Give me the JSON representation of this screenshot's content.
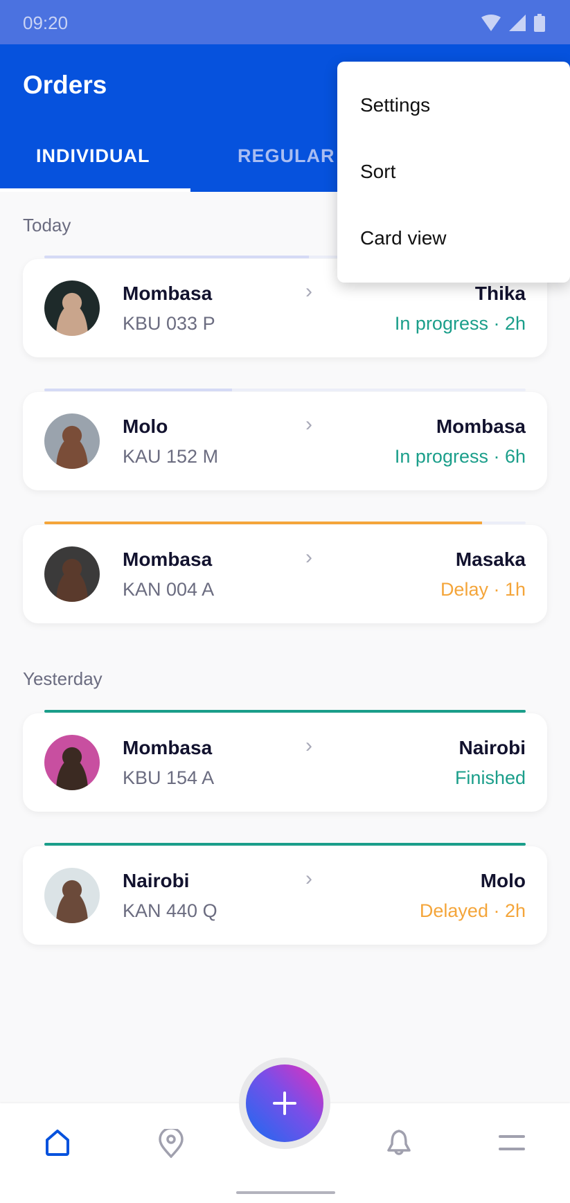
{
  "status_bar": {
    "time": "09:20"
  },
  "header": {
    "title": "Orders",
    "tabs": [
      {
        "label": "INDIVIDUAL",
        "active": true
      },
      {
        "label": "REGULAR",
        "active": false
      }
    ]
  },
  "menu": {
    "items": [
      "Settings",
      "Sort",
      "Card view"
    ]
  },
  "sections": [
    {
      "label": "Today",
      "orders": [
        {
          "from": "Mombasa",
          "plate": "KBU 033 P",
          "to": "Thika",
          "status": "In progress · 2h",
          "status_color": "#1a9e8a",
          "progress": 0.55,
          "bar_color": "#d5daf5"
        },
        {
          "from": "Molo",
          "plate": "KAU 152 M",
          "to": "Mombasa",
          "status": "In progress · 6h",
          "status_color": "#1a9e8a",
          "progress": 0.39,
          "bar_color": "#d5daf5"
        },
        {
          "from": "Mombasa",
          "plate": "KAN 004 A",
          "to": "Masaka",
          "status": "Delay · 1h",
          "status_color": "#f4a53a",
          "progress": 0.91,
          "bar_color": "#f4a53a"
        }
      ]
    },
    {
      "label": "Yesterday",
      "orders": [
        {
          "from": "Mombasa",
          "plate": "KBU 154 A",
          "to": "Nairobi",
          "status": "Finished",
          "status_color": "#1a9e8a",
          "progress": 1,
          "bar_color": "#1a9e8a"
        },
        {
          "from": "Nairobi",
          "plate": "KAN 440 Q",
          "to": "Molo",
          "status": "Delayed · 2h",
          "status_color": "#f4a53a",
          "progress": 1,
          "bar_color": "#1a9e8a"
        }
      ]
    }
  ],
  "bottom_nav": {
    "items": [
      "home-icon",
      "location-pin-icon",
      "add-icon",
      "bell-icon",
      "menu-icon"
    ],
    "active": "home-icon",
    "accent": "#0652dd"
  }
}
